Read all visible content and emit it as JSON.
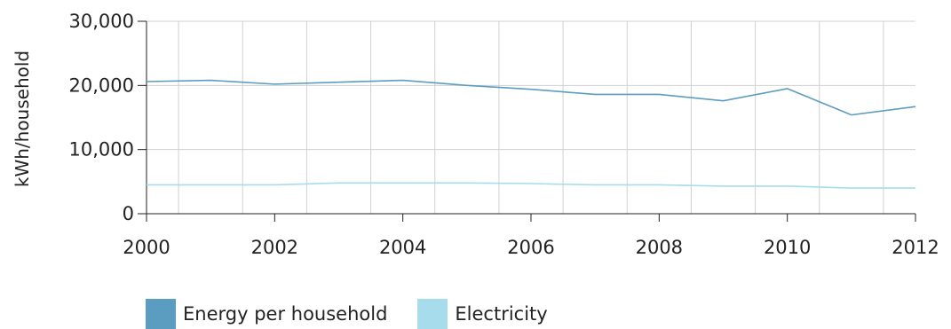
{
  "chart_data": {
    "type": "line",
    "ylabel": "kWh/household",
    "x": [
      2000,
      2001,
      2002,
      2003,
      2004,
      2005,
      2006,
      2007,
      2008,
      2009,
      2010,
      2011,
      2012
    ],
    "xticks": [
      "2000",
      "2002",
      "2004",
      "2006",
      "2008",
      "2010",
      "2012"
    ],
    "yticks": [
      "0",
      "10,000",
      "20,000",
      "30,000"
    ],
    "xlim": [
      2000,
      2012
    ],
    "ylim": [
      0,
      30000
    ],
    "grid": true,
    "legend_position": "bottom",
    "series": [
      {
        "name": "Energy per household",
        "color": "#5b9dc0",
        "values": [
          20600,
          20800,
          20200,
          20500,
          20800,
          20000,
          19400,
          18600,
          18600,
          17600,
          19500,
          15400,
          16700
        ]
      },
      {
        "name": "Electricity",
        "color": "#a6dceb",
        "values": [
          4500,
          4500,
          4500,
          4800,
          4800,
          4800,
          4700,
          4500,
          4500,
          4300,
          4300,
          4000,
          4000
        ]
      }
    ]
  }
}
